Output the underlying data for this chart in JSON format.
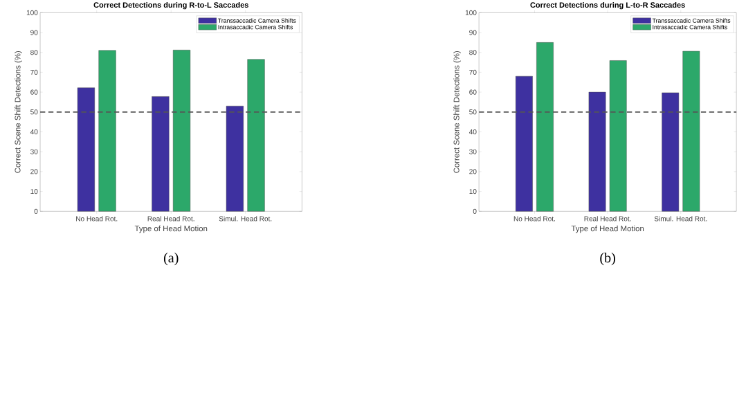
{
  "chart_data": [
    {
      "type": "bar",
      "title": "Correct Detections during R-to-L Saccades",
      "xlabel": "Type of Head Motion",
      "ylabel": "Correct Scene Shift Detections (%)",
      "categories": [
        "No Head Rot.",
        "Real Head Rot.",
        "Simul. Head Rot."
      ],
      "series": [
        {
          "name": "Transsaccadic Camera Shifts",
          "color": "#3e31a0",
          "values": [
            62.2,
            57.8,
            53.0
          ]
        },
        {
          "name": "Intrasaccadic Camera Shifts",
          "color": "#2ca86a",
          "values": [
            81.0,
            81.2,
            76.5
          ]
        }
      ],
      "ylim": [
        0,
        100
      ],
      "yticks": [
        0,
        10,
        20,
        30,
        40,
        50,
        60,
        70,
        80,
        90,
        100
      ],
      "legend": "top right",
      "ref_lines": [
        {
          "axis": "y",
          "value": 50,
          "color": "#555555",
          "line_style": "dashed"
        }
      ],
      "annotations": [
        "(a)"
      ]
    },
    {
      "type": "bar",
      "title": "Correct Detections during L-to-R Saccades",
      "xlabel": "Type of Head Motion",
      "ylabel": "Correct Scene Shift Detections (%)",
      "categories": [
        "No Head Rot.",
        "Real Head Rot.",
        "Simul. Head Rot."
      ],
      "series": [
        {
          "name": "Transsaccadic Camera Shifts",
          "color": "#3e31a0",
          "values": [
            68.0,
            60.0,
            59.7
          ]
        },
        {
          "name": "Intrasaccadic Camera Shifts",
          "color": "#2ca86a",
          "values": [
            85.0,
            75.9,
            80.6
          ]
        }
      ],
      "ylim": [
        0,
        100
      ],
      "yticks": [
        0,
        10,
        20,
        30,
        40,
        50,
        60,
        70,
        80,
        90,
        100
      ],
      "legend": "top right",
      "ref_lines": [
        {
          "axis": "y",
          "value": 50,
          "color": "#555555",
          "line_style": "dashed"
        }
      ],
      "annotations": [
        "(b)"
      ]
    }
  ]
}
